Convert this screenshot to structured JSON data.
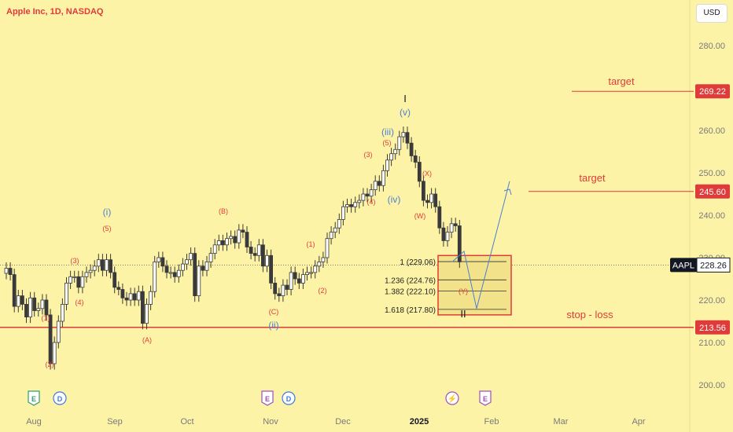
{
  "header": {
    "title": "Apple Inc, 1D, NASDAQ",
    "currency": "USD"
  },
  "colors": {
    "background": "#fdf3a6",
    "wave_red": "#e03b3b",
    "wave_blue": "#4a7fd4",
    "candle": "#3a3a3a"
  },
  "chart_data": {
    "type": "candlestick",
    "symbol": "AAPL",
    "last_price_label": "228.26",
    "x_tick_labels": [
      "Aug",
      "Sep",
      "Oct",
      "Nov",
      "Dec",
      "2025",
      "Feb",
      "Mar",
      "Apr"
    ],
    "y_tick_labels": [
      "280.00",
      "270.00",
      "260.00",
      "250.00",
      "240.00",
      "230.00",
      "220.00",
      "210.00",
      "200.00"
    ],
    "y_range": [
      196,
      284
    ],
    "price_tags": [
      "269.22",
      "245.60",
      "213.56"
    ],
    "annotations": {
      "target_upper": {
        "text": "target",
        "price": 269.22
      },
      "target_lower": {
        "text": "target",
        "price": 245.6
      },
      "stop_loss": {
        "text": "stop - loss",
        "price": 213.56
      }
    },
    "fib_levels": [
      {
        "label": "1 (229.06)",
        "price": 229.06
      },
      {
        "label": "1.236 (224.76)",
        "price": 224.76
      },
      {
        "label": "1.382 (222.10)",
        "price": 222.1
      },
      {
        "label": "1.618 (217.80)",
        "price": 217.8
      }
    ],
    "closes": [
      227.5,
      226.0,
      218.5,
      221.0,
      219.0,
      216.0,
      220.5,
      217.5,
      218.0,
      220.0,
      216.5,
      205.0,
      210.0,
      215.0,
      219.0,
      224.0,
      225.5,
      225.5,
      223.0,
      225.5,
      226.5,
      227.0,
      228.0,
      229.5,
      227.0,
      229.5,
      226.5,
      223.0,
      222.5,
      220.5,
      220.0,
      221.5,
      220.0,
      222.0,
      214.5,
      219.0,
      222.0,
      229.0,
      230.0,
      228.0,
      226.5,
      226.5,
      225.5,
      227.0,
      228.5,
      229.5,
      231.0,
      221.0,
      228.0,
      227.0,
      229.0,
      231.0,
      233.0,
      234.0,
      233.0,
      234.5,
      235.0,
      233.5,
      236.5,
      236.0,
      232.5,
      231.0,
      230.5,
      233.0,
      228.0,
      230.5,
      224.0,
      221.5,
      221.0,
      223.5,
      222.5,
      226.5,
      225.0,
      224.0,
      226.0,
      226.5,
      226.5,
      228.0,
      229.0,
      230.0,
      234.5,
      236.0,
      237.0,
      239.0,
      242.0,
      242.5,
      242.0,
      243.0,
      243.5,
      245.0,
      244.5,
      246.0,
      248.0,
      247.0,
      250.5,
      253.0,
      254.5,
      255.5,
      258.5,
      259.5,
      257.0,
      254.0,
      252.5,
      248.0,
      243.5,
      243.0,
      245.0,
      242.0,
      237.0,
      234.0,
      236.0,
      238.0,
      237.5,
      229.0
    ],
    "wave_labels": [
      {
        "text": "(1)"
      },
      {
        "text": "(2)"
      },
      {
        "text": "(3)"
      },
      {
        "text": "(4)"
      },
      {
        "text": "(5)"
      },
      {
        "text": "(i)"
      },
      {
        "text": "(A)"
      },
      {
        "text": "(B)"
      },
      {
        "text": "(C)"
      },
      {
        "text": "(ii)"
      },
      {
        "text": "(1)"
      },
      {
        "text": "(2)"
      },
      {
        "text": "(3)"
      },
      {
        "text": "(4)"
      },
      {
        "text": "(5)"
      },
      {
        "text": "(iii)"
      },
      {
        "text": "(iv)"
      },
      {
        "text": "(v)"
      },
      {
        "text": "I"
      },
      {
        "text": "(X)"
      },
      {
        "text": "(W)"
      },
      {
        "text": "(Y)"
      },
      {
        "text": "II"
      }
    ],
    "events": [
      "E",
      "D",
      "E",
      "D",
      "E"
    ]
  }
}
